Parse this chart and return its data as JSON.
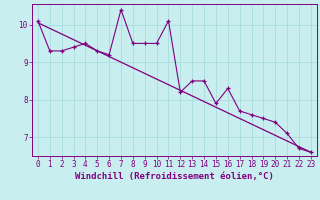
{
  "xlabel": "Windchill (Refroidissement éolien,°C)",
  "bg_color": "#c8eef0",
  "grid_color": "#aadddd",
  "line_color": "#800080",
  "hours": [
    0,
    1,
    2,
    3,
    4,
    5,
    6,
    7,
    8,
    9,
    10,
    11,
    12,
    13,
    14,
    15,
    16,
    17,
    18,
    19,
    20,
    21,
    22,
    23
  ],
  "windchill": [
    10.1,
    9.3,
    9.3,
    9.4,
    9.5,
    9.3,
    9.2,
    10.4,
    9.5,
    9.5,
    9.5,
    10.1,
    8.2,
    8.5,
    8.5,
    7.9,
    8.3,
    7.7,
    7.6,
    7.5,
    7.4,
    7.1,
    6.7,
    6.6
  ],
  "regression_start_x": 0,
  "regression_start_y": 10.05,
  "regression_end_x": 23,
  "regression_end_y": 6.6,
  "ylim_min": 6.5,
  "ylim_max": 10.55,
  "yticks": [
    7,
    8,
    9,
    10
  ],
  "xticks": [
    0,
    1,
    2,
    3,
    4,
    5,
    6,
    7,
    8,
    9,
    10,
    11,
    12,
    13,
    14,
    15,
    16,
    17,
    18,
    19,
    20,
    21,
    22,
    23
  ],
  "tick_fontsize": 5.5,
  "label_fontsize": 6.5,
  "spine_color": "#800080"
}
